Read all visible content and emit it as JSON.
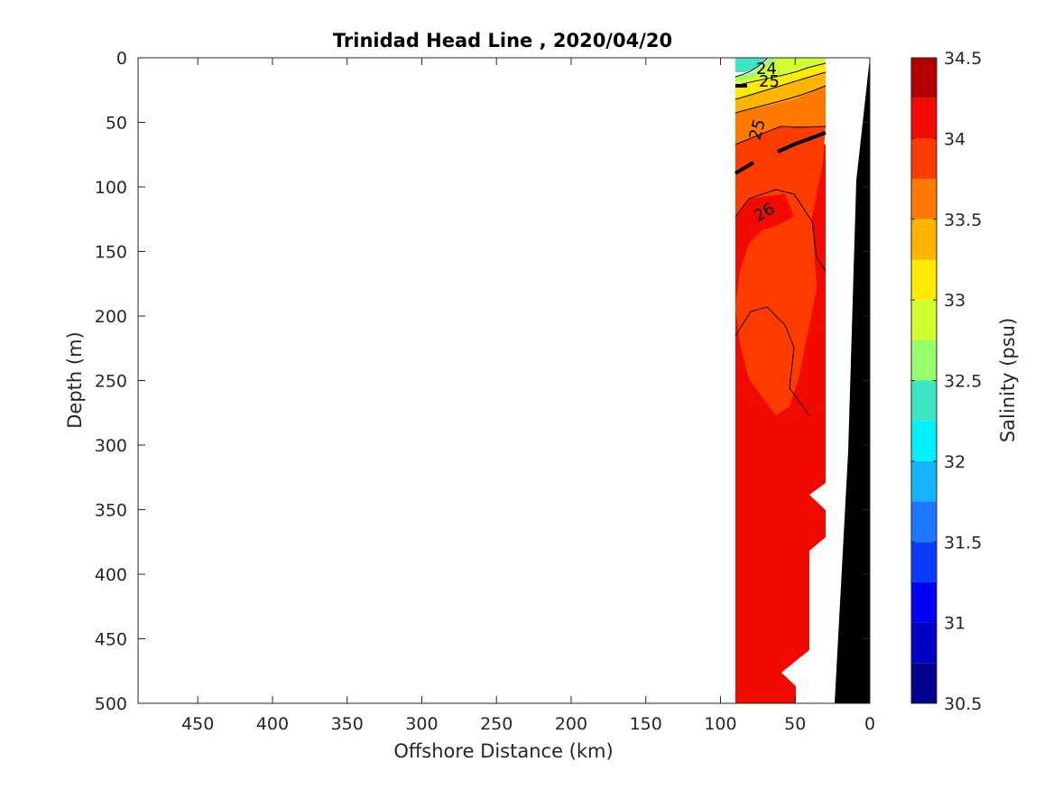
{
  "chart_data": {
    "type": "heatmap",
    "title": "Trinidad Head Line , 2020/04/20",
    "xlabel": "Offshore Distance (km)",
    "ylabel": "Depth (m)",
    "xlim": [
      490,
      0
    ],
    "ylim": [
      0,
      500
    ],
    "x_reversed": true,
    "y_reversed": true,
    "x_ticks": [
      450,
      400,
      350,
      300,
      250,
      200,
      150,
      100,
      50,
      0
    ],
    "y_ticks": [
      0,
      50,
      100,
      150,
      200,
      250,
      300,
      350,
      400,
      450,
      500
    ],
    "colorbar": {
      "label": "Salinity (psu)",
      "range": [
        30.5,
        34.5
      ],
      "step": 0.25,
      "tick_labels": [
        "34.5",
        "34",
        "33.5",
        "33",
        "32.5",
        "32",
        "31.5",
        "31",
        "30.5"
      ],
      "tick_values": [
        34.5,
        34,
        33.5,
        33,
        32.5,
        32,
        31.5,
        31,
        30.5
      ],
      "colors": [
        "#00008f",
        "#0000c4",
        "#0000f5",
        "#0a3cff",
        "#1e78ff",
        "#14b4ff",
        "#00f0ff",
        "#3ce6c3",
        "#96ff6e",
        "#d2ff32",
        "#ffeb00",
        "#ffb400",
        "#ff7800",
        "#ff3c00",
        "#f00a00",
        "#b40000"
      ]
    },
    "density_contours": [
      {
        "label": "24",
        "value": 24
      },
      {
        "label": "25",
        "value": 25
      },
      {
        "label": "25",
        "value": 25
      },
      {
        "label": "26",
        "value": 26
      }
    ],
    "bottom_topography_color": "#000000",
    "data_x_range": [
      90,
      30
    ]
  }
}
